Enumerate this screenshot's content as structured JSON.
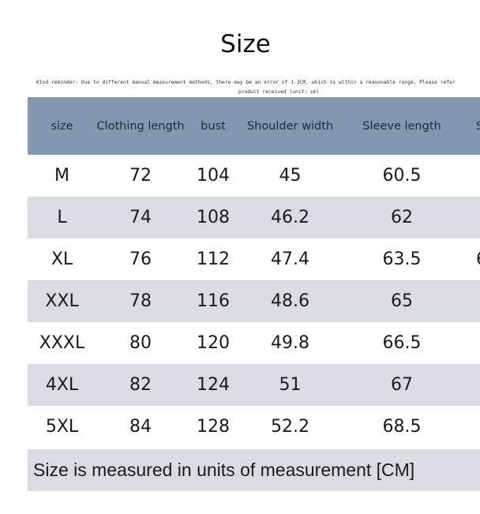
{
  "title": "Size",
  "reminder": {
    "line1": "Kind reminder: Due to different manual measurement methods, there may be an error of 1-3CM, which is within a reasonable range. Please refer",
    "line2": "product received (unit: cm)"
  },
  "table": {
    "headers": [
      "size",
      "Clothing length",
      "bust",
      "Shoulder width",
      "Sleeve length",
      "S"
    ],
    "rows": [
      [
        "M",
        "72",
        "104",
        "45",
        "60.5",
        ""
      ],
      [
        "L",
        "74",
        "108",
        "46.2",
        "62",
        ""
      ],
      [
        "XL",
        "76",
        "112",
        "47.4",
        "63.5",
        "6"
      ],
      [
        "XXL",
        "78",
        "116",
        "48.6",
        "65",
        ""
      ],
      [
        "XXXL",
        "80",
        "120",
        "49.8",
        "66.5",
        ""
      ],
      [
        "4XL",
        "82",
        "124",
        "51",
        "67",
        ""
      ],
      [
        "5XL",
        "84",
        "128",
        "52.2",
        "68.5",
        ""
      ]
    ]
  },
  "footer": "Size is measured in units of measurement [CM]",
  "colors": {
    "header_bg": "#8497b0",
    "stripe_bg": "#d9dde3",
    "row_bg": "#ffffff"
  }
}
